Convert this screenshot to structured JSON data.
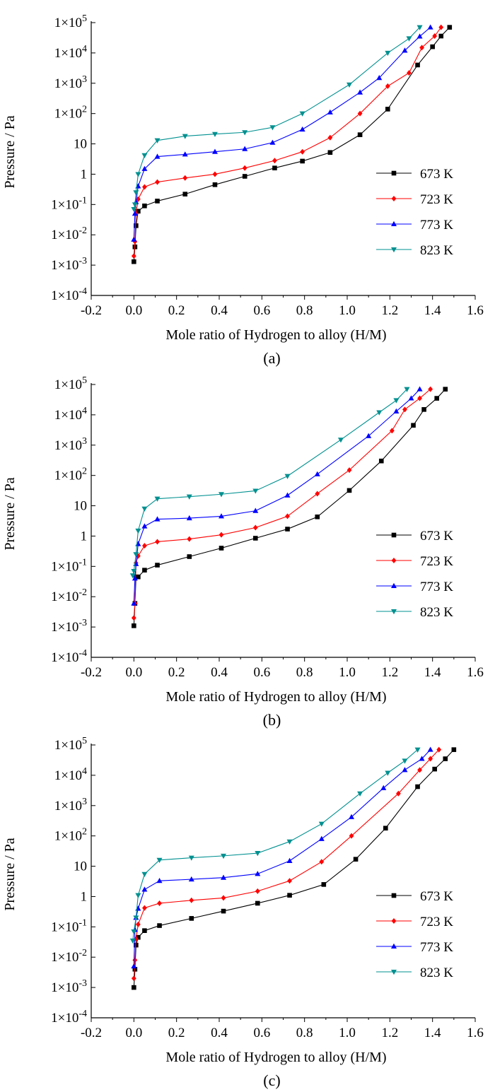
{
  "chart_data": [
    {
      "type": "line",
      "panel_label": "(a)",
      "xlabel": "Mole ratio of Hydrogen to alloy (H/M)",
      "ylabel": "Pressure / Pa",
      "xlim": [
        -0.2,
        1.6
      ],
      "ylim_log10": [
        -4,
        5
      ],
      "yscale": "log",
      "legend_position": "right-middle",
      "x_ticks": [
        "-0.2",
        "0.0",
        "0.2",
        "0.4",
        "0.6",
        "0.8",
        "1.0",
        "1.2",
        "1.4",
        "1.6"
      ],
      "y_ticks": [
        {
          "base": "1×10",
          "exp": "-4"
        },
        {
          "base": "1×10",
          "exp": "-3"
        },
        {
          "base": "1×10",
          "exp": "-2"
        },
        {
          "base": "1×10",
          "exp": "-1"
        },
        {
          "base": "1",
          "exp": ""
        },
        {
          "base": "10",
          "exp": ""
        },
        {
          "base": "1×10",
          "exp": "2"
        },
        {
          "base": "1×10",
          "exp": "3"
        },
        {
          "base": "1×10",
          "exp": "4"
        },
        {
          "base": "1×10",
          "exp": "5"
        }
      ],
      "series": [
        {
          "name": "673 K",
          "color": "#000000",
          "marker": "square",
          "x": [
            0.0,
            0.005,
            0.01,
            0.02,
            0.05,
            0.11,
            0.24,
            0.38,
            0.52,
            0.66,
            0.79,
            0.92,
            1.06,
            1.19,
            1.33,
            1.4,
            1.44,
            1.48
          ],
          "y": [
            0.0013,
            0.004,
            0.02,
            0.06,
            0.09,
            0.13,
            0.22,
            0.45,
            0.85,
            1.6,
            2.7,
            5.2,
            20,
            140,
            4000,
            16000,
            36000,
            70000
          ]
        },
        {
          "name": "723 K",
          "color": "#ff0000",
          "marker": "diamond",
          "x": [
            0.0,
            0.005,
            0.01,
            0.02,
            0.05,
            0.11,
            0.24,
            0.38,
            0.52,
            0.66,
            0.79,
            0.92,
            1.06,
            1.19,
            1.29,
            1.35,
            1.41,
            1.44
          ],
          "y": [
            0.002,
            0.006,
            0.05,
            0.15,
            0.38,
            0.55,
            0.75,
            1.0,
            1.6,
            2.8,
            5.5,
            16,
            100,
            800,
            2200,
            15000,
            36000,
            70000
          ]
        },
        {
          "name": "773 K",
          "color": "#0000ff",
          "marker": "triangle-up",
          "x": [
            0.0,
            0.005,
            0.01,
            0.02,
            0.05,
            0.11,
            0.24,
            0.38,
            0.52,
            0.65,
            0.79,
            0.92,
            1.06,
            1.15,
            1.27,
            1.34,
            1.39
          ],
          "y": [
            0.007,
            0.05,
            0.12,
            0.4,
            1.5,
            3.8,
            4.5,
            5.5,
            6.8,
            11,
            30,
            110,
            500,
            1500,
            12000,
            35000,
            70000
          ]
        },
        {
          "name": "823 K",
          "color": "#009090",
          "marker": "triangle-down",
          "x": [
            0.0,
            0.005,
            0.01,
            0.02,
            0.05,
            0.11,
            0.24,
            0.38,
            0.52,
            0.65,
            0.79,
            1.01,
            1.19,
            1.29,
            1.34
          ],
          "y": [
            0.07,
            0.1,
            0.25,
            1.0,
            4.2,
            13,
            18,
            21,
            24,
            35,
            100,
            900,
            10000,
            30000,
            70000
          ]
        }
      ]
    },
    {
      "type": "line",
      "panel_label": "(b)",
      "xlabel": "Mole ratio of Hydrogen to alloy (H/M)",
      "ylabel": "Pressure / Pa",
      "xlim": [
        -0.2,
        1.6
      ],
      "ylim_log10": [
        -4,
        5
      ],
      "yscale": "log",
      "legend_position": "right-middle",
      "x_ticks": [
        "-0.2",
        "0.0",
        "0.2",
        "0.4",
        "0.6",
        "0.8",
        "1.0",
        "1.2",
        "1.4",
        "1.6"
      ],
      "y_ticks": [
        {
          "base": "1×10",
          "exp": "-4"
        },
        {
          "base": "1×10",
          "exp": "-3"
        },
        {
          "base": "1×10",
          "exp": "-2"
        },
        {
          "base": "1×10",
          "exp": "-1"
        },
        {
          "base": "1",
          "exp": ""
        },
        {
          "base": "10",
          "exp": ""
        },
        {
          "base": "1×10",
          "exp": "2"
        },
        {
          "base": "1×10",
          "exp": "3"
        },
        {
          "base": "1×10",
          "exp": "4"
        },
        {
          "base": "1×10",
          "exp": "5"
        }
      ],
      "series": [
        {
          "name": "673 K",
          "color": "#000000",
          "marker": "square",
          "x": [
            0.0,
            0.005,
            0.01,
            0.02,
            0.05,
            0.11,
            0.26,
            0.41,
            0.57,
            0.72,
            0.86,
            1.01,
            1.16,
            1.31,
            1.36,
            1.42,
            1.46
          ],
          "y": [
            0.0011,
            0.006,
            0.045,
            0.045,
            0.075,
            0.11,
            0.21,
            0.4,
            0.85,
            1.7,
            4.3,
            32,
            300,
            4500,
            15000,
            35000,
            70000
          ]
        },
        {
          "name": "723 K",
          "color": "#ff0000",
          "marker": "diamond",
          "x": [
            0.0,
            0.005,
            0.01,
            0.02,
            0.05,
            0.11,
            0.26,
            0.41,
            0.57,
            0.72,
            0.86,
            1.01,
            1.21,
            1.27,
            1.34,
            1.39
          ],
          "y": [
            0.002,
            0.006,
            0.13,
            0.22,
            0.48,
            0.65,
            0.8,
            1.1,
            1.9,
            4.5,
            25,
            150,
            3000,
            15000,
            35000,
            70000
          ]
        },
        {
          "name": "773 K",
          "color": "#0000ff",
          "marker": "triangle-up",
          "x": [
            0.0,
            0.005,
            0.01,
            0.02,
            0.05,
            0.11,
            0.26,
            0.41,
            0.57,
            0.72,
            0.86,
            1.1,
            1.23,
            1.3,
            1.34
          ],
          "y": [
            0.006,
            0.04,
            0.12,
            0.55,
            2.1,
            3.6,
            3.9,
            4.5,
            6.8,
            22,
            110,
            2000,
            13000,
            35000,
            70000
          ]
        },
        {
          "name": "823 K",
          "color": "#009090",
          "marker": "triangle-down",
          "x": [
            -0.005,
            0.0,
            0.01,
            0.02,
            0.05,
            0.11,
            0.26,
            0.41,
            0.57,
            0.72,
            0.97,
            1.15,
            1.23,
            1.28
          ],
          "y": [
            0.05,
            0.07,
            0.25,
            1.5,
            8.0,
            17,
            20,
            24,
            31,
            95,
            1500,
            12000,
            30000,
            70000
          ]
        }
      ]
    },
    {
      "type": "line",
      "panel_label": "(c)",
      "xlabel": "Mole ratio of Hydrogen to alloy (H/M)",
      "ylabel": "Pressure / Pa",
      "xlim": [
        -0.2,
        1.6
      ],
      "ylim_log10": [
        -4,
        5
      ],
      "yscale": "log",
      "legend_position": "right-middle",
      "x_ticks": [
        "-0.2",
        "0.0",
        "0.2",
        "0.4",
        "0.6",
        "0.8",
        "1.0",
        "1.2",
        "1.4",
        "1.6"
      ],
      "y_ticks": [
        {
          "base": "1×10",
          "exp": "-4"
        },
        {
          "base": "1×10",
          "exp": "-3"
        },
        {
          "base": "1×10",
          "exp": "-2"
        },
        {
          "base": "1×10",
          "exp": "-1"
        },
        {
          "base": "1",
          "exp": ""
        },
        {
          "base": "10",
          "exp": ""
        },
        {
          "base": "1×10",
          "exp": "2"
        },
        {
          "base": "1×10",
          "exp": "3"
        },
        {
          "base": "1×10",
          "exp": "4"
        },
        {
          "base": "1×10",
          "exp": "5"
        }
      ],
      "series": [
        {
          "name": "673 K",
          "color": "#000000",
          "marker": "square",
          "x": [
            0.0,
            0.005,
            0.01,
            0.02,
            0.05,
            0.12,
            0.27,
            0.42,
            0.58,
            0.73,
            0.89,
            1.04,
            1.18,
            1.33,
            1.41,
            1.46,
            1.5
          ],
          "y": [
            0.001,
            0.004,
            0.025,
            0.045,
            0.075,
            0.11,
            0.19,
            0.33,
            0.6,
            1.1,
            2.5,
            17,
            180,
            4200,
            16000,
            35000,
            70000
          ]
        },
        {
          "name": "723 K",
          "color": "#ff0000",
          "marker": "diamond",
          "x": [
            0.0,
            0.005,
            0.01,
            0.02,
            0.05,
            0.12,
            0.27,
            0.42,
            0.58,
            0.73,
            0.88,
            1.02,
            1.24,
            1.34,
            1.39,
            1.43
          ],
          "y": [
            0.002,
            0.008,
            0.04,
            0.12,
            0.42,
            0.6,
            0.75,
            0.9,
            1.5,
            3.3,
            14,
            100,
            2500,
            15000,
            35000,
            70000
          ]
        },
        {
          "name": "773 K",
          "color": "#0000ff",
          "marker": "triangle-up",
          "x": [
            0.0,
            0.005,
            0.01,
            0.02,
            0.05,
            0.12,
            0.27,
            0.42,
            0.58,
            0.73,
            0.88,
            1.02,
            1.17,
            1.27,
            1.35,
            1.39
          ],
          "y": [
            0.005,
            0.08,
            0.2,
            0.4,
            1.7,
            3.3,
            3.7,
            4.2,
            5.6,
            15,
            80,
            420,
            3800,
            15000,
            35000,
            70000
          ]
        },
        {
          "name": "823 K",
          "color": "#009090",
          "marker": "triangle-down",
          "x": [
            -0.005,
            0.0,
            0.01,
            0.02,
            0.05,
            0.12,
            0.27,
            0.42,
            0.58,
            0.73,
            0.88,
            1.06,
            1.19,
            1.27,
            1.33
          ],
          "y": [
            0.035,
            0.07,
            0.2,
            1.1,
            5.5,
            16,
            19,
            22,
            27,
            65,
            250,
            2500,
            12000,
            30000,
            70000
          ]
        }
      ]
    }
  ]
}
